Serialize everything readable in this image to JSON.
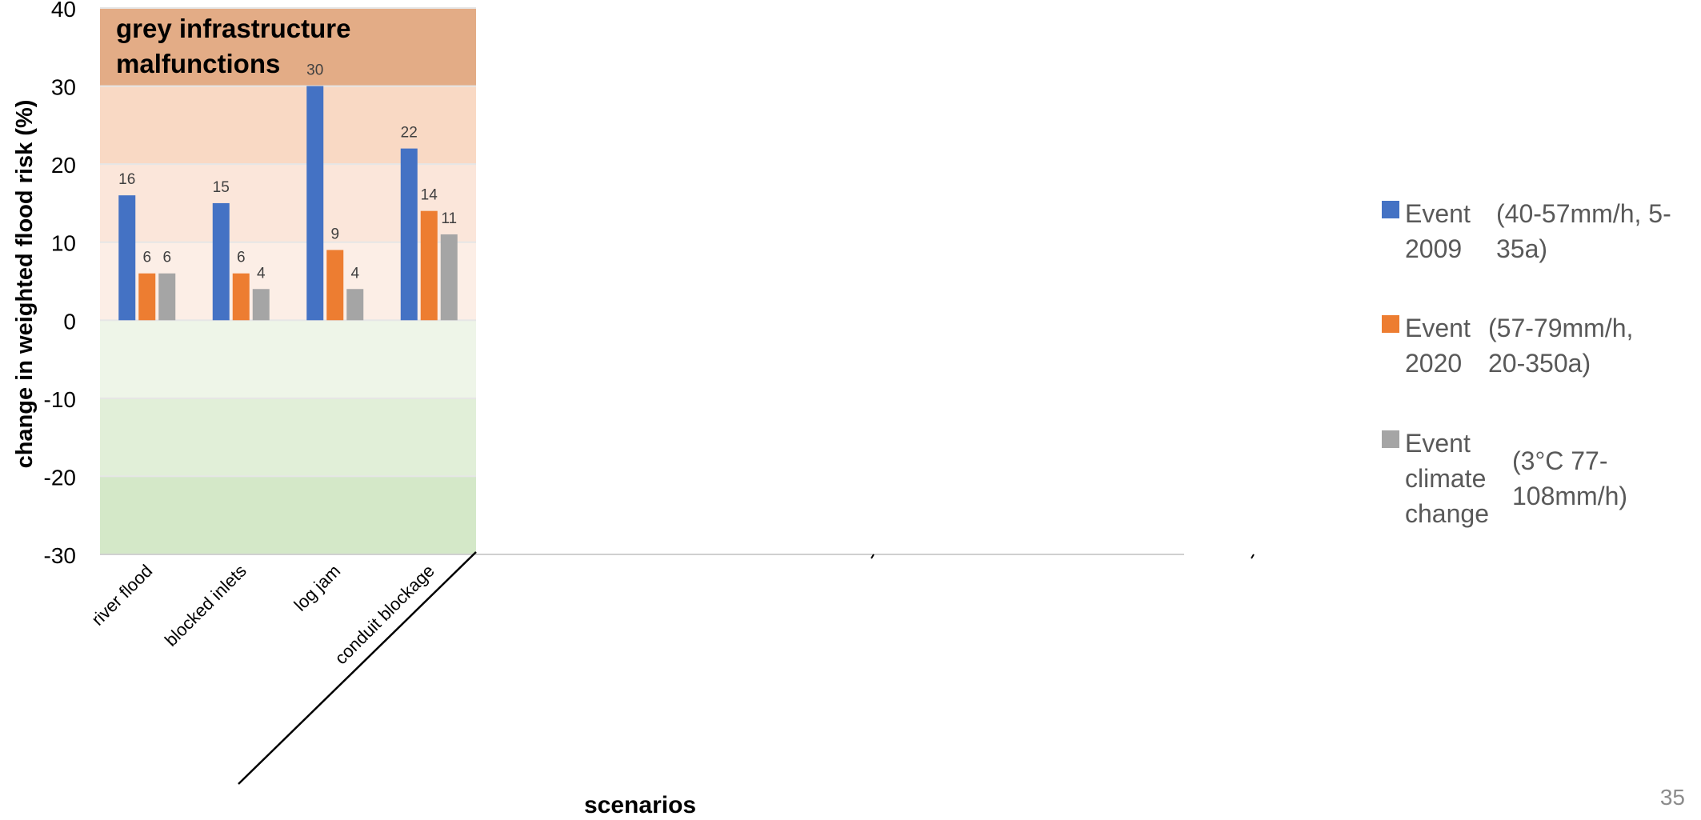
{
  "slide_number": "35",
  "chart_data": {
    "type": "bar",
    "title": "",
    "xlabel": "scenarios",
    "ylabel": "change in weighted flood risk (%)",
    "ylim": [
      -30,
      40
    ],
    "yticks": [
      -30,
      -20,
      -10,
      0,
      10,
      20,
      30,
      40
    ],
    "categories": [
      "river flood",
      "blocked inlets",
      "log jam",
      "conduit blockage"
    ],
    "annotation": "grey infrastructure malfunctions",
    "series": [
      {
        "name": "Event 2009",
        "description": "(40-57mm/h, 5-35a)",
        "color": "#4472C4",
        "values": [
          16,
          15,
          30,
          22
        ],
        "labels": [
          "16",
          "15",
          "30",
          "22"
        ]
      },
      {
        "name": "Event 2020",
        "description": "(57-79mm/h, 20-350a)",
        "color": "#ED7D31",
        "values": [
          6,
          6,
          9,
          14
        ],
        "labels": [
          "6",
          "6",
          "9",
          "14"
        ]
      },
      {
        "name": "Event climate change",
        "description": "(3°C 77-108mm/h)",
        "color": "#A5A5A5",
        "values": [
          6,
          4,
          4,
          11
        ],
        "labels": [
          "6",
          "4",
          "4",
          "11"
        ]
      }
    ],
    "background_bands": [
      {
        "from": 30,
        "to": 40,
        "color": "#E3AC86"
      },
      {
        "from": 20,
        "to": 30,
        "color": "#F9D9C4"
      },
      {
        "from": 10,
        "to": 20,
        "color": "#FBE6DA"
      },
      {
        "from": 0,
        "to": 10,
        "color": "#FCEEE6"
      },
      {
        "from": -10,
        "to": 0,
        "color": "#EEF5E8"
      },
      {
        "from": -20,
        "to": -10,
        "color": "#E1EFD8"
      },
      {
        "from": -30,
        "to": -20,
        "color": "#D4E8C8"
      }
    ],
    "grid": true,
    "legend_position": "right"
  }
}
